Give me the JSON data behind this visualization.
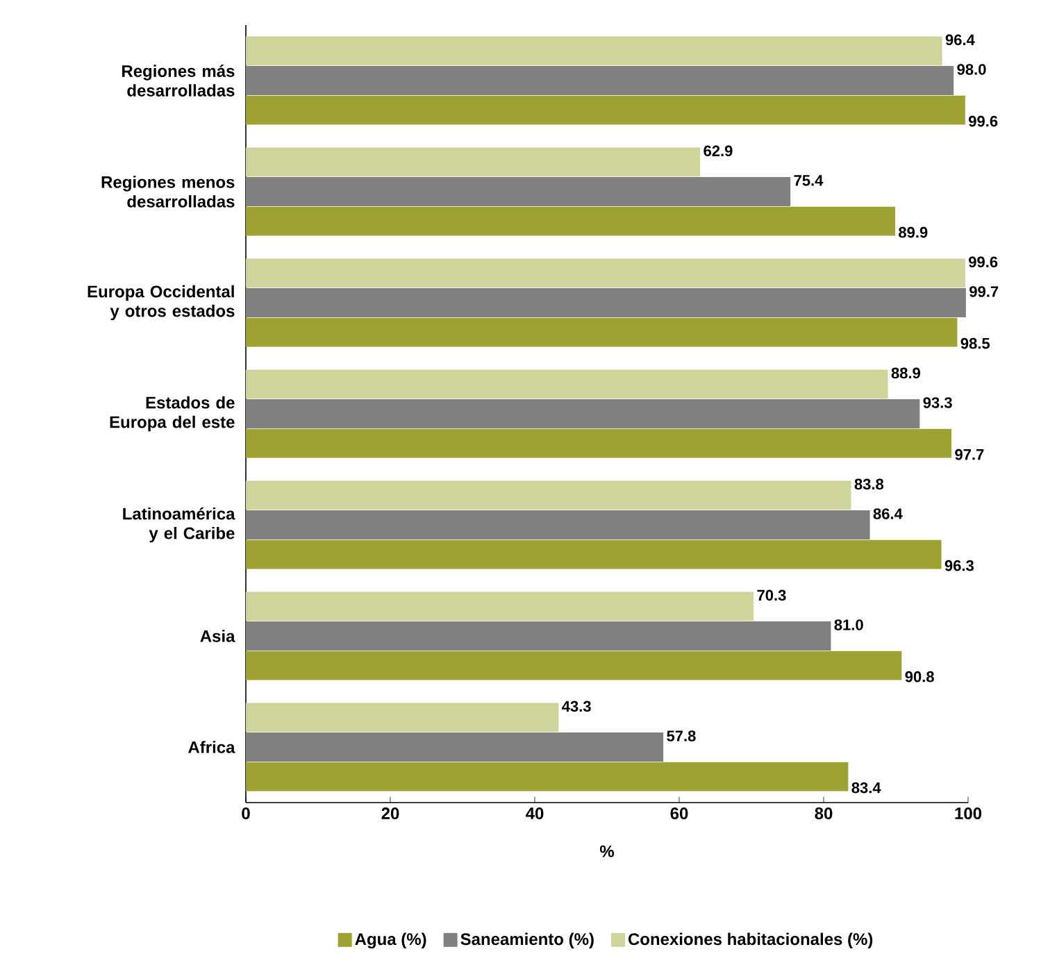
{
  "chart_data": {
    "type": "bar",
    "orientation": "horizontal",
    "xlabel": "%",
    "categories": [
      "Regiones más desarrolladas",
      "Regiones menos desarrolladas",
      "Europa Occidental y otros estados",
      "Estados de Europa del este",
      "Latinoamérica y el Caribe",
      "Asia",
      "Africa"
    ],
    "series": [
      {
        "name": "Agua (%)",
        "color": "#9ea232",
        "values": [
          99.6,
          89.9,
          98.5,
          97.7,
          96.3,
          90.8,
          83.4
        ],
        "value_labels": [
          "99.6",
          "89.9",
          "98.5",
          "97.7",
          "96.3",
          "90.8",
          "83.4"
        ]
      },
      {
        "name": "Saneamiento (%)",
        "color": "#808080",
        "values": [
          98.0,
          75.4,
          99.7,
          93.3,
          86.4,
          81.0,
          57.8
        ],
        "value_labels": [
          "98.0",
          "75.4",
          "99.7",
          "93.3",
          "86.4",
          "81.0",
          "57.8"
        ]
      },
      {
        "name": "Conexiones habitacionales (%)",
        "color": "#cfd49b",
        "values": [
          96.4,
          62.9,
          99.6,
          88.9,
          83.8,
          70.3,
          43.3
        ],
        "value_labels": [
          "96.4",
          "62.9",
          "99.6",
          "88.9",
          "83.8",
          "70.3",
          "43.3"
        ]
      }
    ],
    "xlim": [
      0,
      100
    ],
    "xticks": [
      0,
      20,
      40,
      60,
      80,
      100
    ],
    "grid": false,
    "legend": "bottom"
  }
}
